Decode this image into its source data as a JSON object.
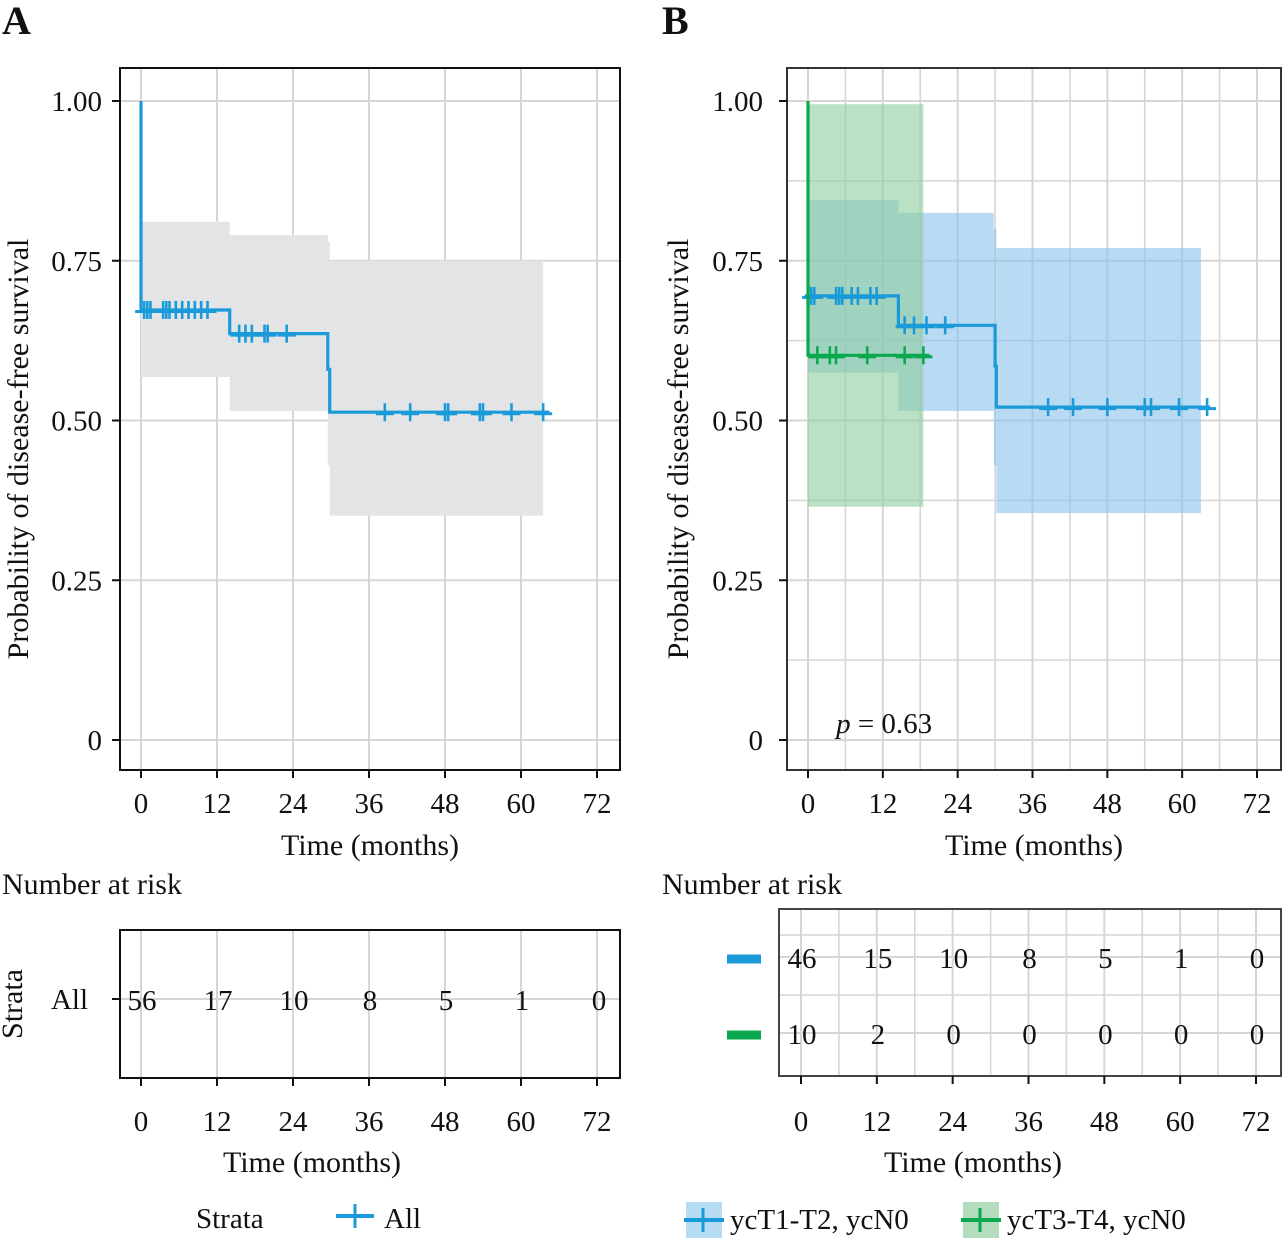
{
  "panels": {
    "A": {
      "label": "A"
    },
    "B": {
      "label": "B"
    }
  },
  "chart_data": [
    {
      "type": "line",
      "subtype": "kaplan-meier",
      "panel": "A",
      "title": "",
      "xlabel": "Time (months)",
      "ylabel": "Probability of disease-free survival",
      "xlim": [
        0,
        72
      ],
      "ylim": [
        0,
        1
      ],
      "xticks": [
        "0",
        "12",
        "24",
        "36",
        "48",
        "60",
        "72"
      ],
      "yticks": [
        "0",
        "0.25",
        "0.50",
        "0.75",
        "1.00"
      ],
      "grid": true,
      "series": [
        {
          "name": "All",
          "color": "#1a9ad9",
          "ci_color": "#e3e4e6",
          "steps": [
            [
              0,
              1.0
            ],
            [
              0,
              0.673
            ],
            [
              14.0,
              0.673
            ],
            [
              14.0,
              0.636
            ],
            [
              29.5,
              0.636
            ],
            [
              29.5,
              0.58
            ],
            [
              29.8,
              0.58
            ],
            [
              29.8,
              0.513
            ],
            [
              64.5,
              0.513
            ]
          ],
          "ci": [
            {
              "from": 0,
              "to": 14.0,
              "lower": 0.568,
              "upper": 0.811
            },
            {
              "from": 14.0,
              "to": 29.5,
              "lower": 0.515,
              "upper": 0.79
            },
            {
              "from": 29.5,
              "to": 29.8,
              "lower": 0.43,
              "upper": 0.78
            },
            {
              "from": 29.8,
              "to": 63.5,
              "lower": 0.351,
              "upper": 0.75
            }
          ],
          "censored": [
            {
              "t": 0.5,
              "s": 0.673
            },
            {
              "t": 1.0,
              "s": 0.673
            },
            {
              "t": 1.5,
              "s": 0.673
            },
            {
              "t": 3.5,
              "s": 0.673
            },
            {
              "t": 4.0,
              "s": 0.673
            },
            {
              "t": 4.5,
              "s": 0.673
            },
            {
              "t": 5.5,
              "s": 0.673
            },
            {
              "t": 6.5,
              "s": 0.673
            },
            {
              "t": 7.5,
              "s": 0.673
            },
            {
              "t": 8.5,
              "s": 0.673
            },
            {
              "t": 9.5,
              "s": 0.673
            },
            {
              "t": 10.5,
              "s": 0.673
            },
            {
              "t": 15.5,
              "s": 0.636
            },
            {
              "t": 16.5,
              "s": 0.636
            },
            {
              "t": 17.5,
              "s": 0.636
            },
            {
              "t": 19.5,
              "s": 0.636
            },
            {
              "t": 20.0,
              "s": 0.636
            },
            {
              "t": 23.0,
              "s": 0.636
            },
            {
              "t": 38.5,
              "s": 0.513
            },
            {
              "t": 42.5,
              "s": 0.513
            },
            {
              "t": 48.0,
              "s": 0.513
            },
            {
              "t": 48.5,
              "s": 0.513
            },
            {
              "t": 53.5,
              "s": 0.513
            },
            {
              "t": 54.0,
              "s": 0.513
            },
            {
              "t": 58.5,
              "s": 0.513
            },
            {
              "t": 63.5,
              "s": 0.513
            }
          ]
        }
      ],
      "risk_table": {
        "title": "Number at risk",
        "ylabel": "Strata",
        "xlabel": "Time (months)",
        "times": [
          0,
          12,
          24,
          36,
          48,
          60,
          72
        ],
        "rows": [
          {
            "label": "All",
            "values": [
              "56",
              "17",
              "10",
              "8",
              "5",
              "1",
              "0"
            ]
          }
        ]
      },
      "legend": {
        "placement": "bottom",
        "title": "Strata",
        "items": [
          {
            "label": "All",
            "color": "#1a9ad9"
          }
        ]
      }
    },
    {
      "type": "line",
      "subtype": "kaplan-meier",
      "panel": "B",
      "title": "",
      "xlabel": "Time (months)",
      "ylabel": "Probability of disease-free survival",
      "xlim": [
        0,
        72
      ],
      "ylim": [
        0,
        1
      ],
      "xticks": [
        "0",
        "12",
        "24",
        "36",
        "48",
        "60",
        "72"
      ],
      "yticks": [
        "0",
        "0.25",
        "0.50",
        "0.75",
        "1.00"
      ],
      "grid": true,
      "minor_grid": true,
      "annotation": {
        "italic": "p",
        "text": " = 0.63"
      },
      "series": [
        {
          "name": "ycT1-T2, ycN0",
          "color": "#1a9ad9",
          "ci_color": "#8ec3ec",
          "steps": [
            [
              -0.5,
              0.695
            ],
            [
              14.5,
              0.695
            ],
            [
              14.5,
              0.649
            ],
            [
              30.0,
              0.649
            ],
            [
              30.0,
              0.585
            ],
            [
              30.2,
              0.585
            ],
            [
              30.2,
              0.521
            ],
            [
              64.5,
              0.521
            ]
          ],
          "ci": [
            {
              "from": 0,
              "to": 14.5,
              "lower": 0.575,
              "upper": 0.845
            },
            {
              "from": 14.5,
              "to": 29.8,
              "lower": 0.515,
              "upper": 0.825
            },
            {
              "from": 29.8,
              "to": 30.2,
              "lower": 0.43,
              "upper": 0.8
            },
            {
              "from": 30.2,
              "to": 63.0,
              "lower": 0.355,
              "upper": 0.77
            }
          ],
          "censored": [
            {
              "t": 0.5,
              "s": 0.695
            },
            {
              "t": 1.0,
              "s": 0.695
            },
            {
              "t": 4.5,
              "s": 0.695
            },
            {
              "t": 5.0,
              "s": 0.695
            },
            {
              "t": 5.5,
              "s": 0.695
            },
            {
              "t": 7.0,
              "s": 0.695
            },
            {
              "t": 8.0,
              "s": 0.695
            },
            {
              "t": 10.0,
              "s": 0.695
            },
            {
              "t": 11.0,
              "s": 0.695
            },
            {
              "t": 15.5,
              "s": 0.649
            },
            {
              "t": 17.0,
              "s": 0.649
            },
            {
              "t": 19.0,
              "s": 0.649
            },
            {
              "t": 22.0,
              "s": 0.649
            },
            {
              "t": 38.5,
              "s": 0.521
            },
            {
              "t": 42.5,
              "s": 0.521
            },
            {
              "t": 48.0,
              "s": 0.521
            },
            {
              "t": 54.0,
              "s": 0.521
            },
            {
              "t": 55.0,
              "s": 0.521
            },
            {
              "t": 59.5,
              "s": 0.521
            },
            {
              "t": 64.0,
              "s": 0.521
            }
          ]
        },
        {
          "name": "ycT3-T4, ycN0",
          "color": "#0aa84f",
          "ci_color": "#8fcf9f",
          "steps": [
            [
              0,
              1.0
            ],
            [
              0,
              0.602
            ],
            [
              19.5,
              0.602
            ]
          ],
          "ci": [
            {
              "from": 0,
              "to": 18.5,
              "lower": 0.365,
              "upper": 0.995
            }
          ],
          "censored": [
            {
              "t": 1.5,
              "s": 0.602
            },
            {
              "t": 3.5,
              "s": 0.602
            },
            {
              "t": 4.5,
              "s": 0.602
            },
            {
              "t": 9.5,
              "s": 0.602
            },
            {
              "t": 15.5,
              "s": 0.602
            },
            {
              "t": 18.5,
              "s": 0.602
            }
          ]
        }
      ],
      "risk_table": {
        "title": "Number at risk",
        "ylabel": "",
        "xlabel": "Time (months)",
        "times": [
          0,
          12,
          24,
          36,
          48,
          60,
          72
        ],
        "rows": [
          {
            "label": "",
            "color": "#1a9ad9",
            "values": [
              "46",
              "15",
              "10",
              "8",
              "5",
              "1",
              "0"
            ]
          },
          {
            "label": "",
            "color": "#0aa84f",
            "values": [
              "10",
              "2",
              "0",
              "0",
              "0",
              "0",
              "0"
            ]
          }
        ]
      },
      "legend": {
        "placement": "bottom",
        "title": "",
        "items": [
          {
            "label": "ycT1-T2, ycN0",
            "color": "#1a9ad9",
            "fill": "#b6dcf5"
          },
          {
            "label": "ycT3-T4, ycN0",
            "color": "#0aa84f",
            "fill": "#b3dcbc"
          }
        ]
      }
    }
  ]
}
